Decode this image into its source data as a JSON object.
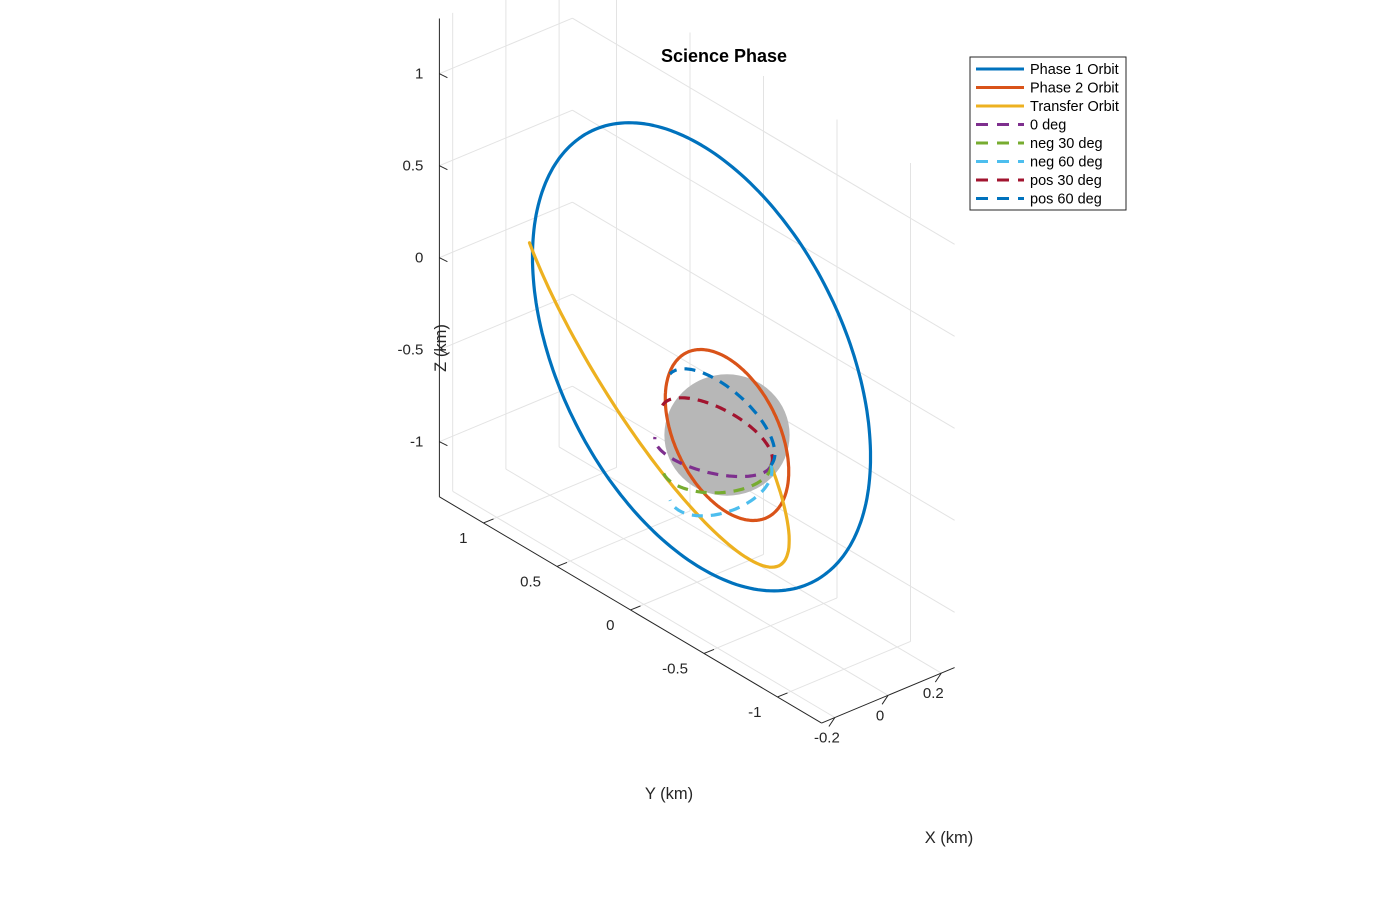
{
  "chart_data": {
    "type": "line",
    "projection": "3d",
    "title": "Science Phase",
    "xlabel": "X (km)",
    "ylabel": "Y (km)",
    "zlabel": "Z (km)",
    "xlim": [
      -0.25,
      0.25
    ],
    "ylim": [
      -1.3,
      1.3
    ],
    "zlim": [
      -1.3,
      1.3
    ],
    "xticks": [
      -0.2,
      0,
      0.2
    ],
    "xtick_labels": [
      "-0.2",
      "0",
      "0.2"
    ],
    "yticks": [
      1,
      0.5,
      0,
      -0.5,
      -1
    ],
    "ytick_labels": [
      "1",
      "0.5",
      "0",
      "-0.5",
      "-1"
    ],
    "zticks": [
      1,
      0.5,
      0,
      -0.5,
      -1
    ],
    "ztick_labels": [
      "1",
      "0.5",
      "0",
      "-0.5",
      "-1"
    ],
    "grid": true,
    "legend_position": "top-right",
    "body": {
      "shape": "sphere",
      "radius_km": 0.3,
      "color": "#b7b7b7"
    },
    "series": [
      {
        "name": "Phase 1 Orbit",
        "color": "#0072BD",
        "style": "solid",
        "shape": "circle",
        "radius_km": 1.15,
        "inclination_deg": 90,
        "arc": "full"
      },
      {
        "name": "Phase 2 Orbit",
        "color": "#D95319",
        "style": "solid",
        "shape": "circle",
        "radius_km": 0.42,
        "inclination_deg": 90,
        "arc": "full"
      },
      {
        "name": "Transfer Orbit",
        "color": "#EDB120",
        "style": "solid",
        "shape": "ellipse",
        "periapsis_km": 0.42,
        "apoapsis_km": 1.15,
        "arc": "half"
      },
      {
        "name": "0 deg",
        "color": "#7E2F8E",
        "style": "dashed",
        "shape": "ellipse",
        "periapsis_km": 0.3,
        "apoapsis_km": 0.42,
        "inclination_deg": 0,
        "arc": "half"
      },
      {
        "name": "neg 30 deg",
        "color": "#77AC30",
        "style": "dashed",
        "shape": "ellipse",
        "periapsis_km": 0.3,
        "apoapsis_km": 0.42,
        "inclination_deg": -30,
        "arc": "half"
      },
      {
        "name": "neg 60 deg",
        "color": "#4DBEEE",
        "style": "dashed",
        "shape": "ellipse",
        "periapsis_km": 0.3,
        "apoapsis_km": 0.42,
        "inclination_deg": -60,
        "arc": "half"
      },
      {
        "name": "pos 30 deg",
        "color": "#A2142F",
        "style": "dashed",
        "shape": "ellipse",
        "periapsis_km": 0.3,
        "apoapsis_km": 0.42,
        "inclination_deg": 30,
        "arc": "half"
      },
      {
        "name": "pos 60 deg",
        "color": "#0072BD",
        "style": "dashed",
        "shape": "ellipse",
        "periapsis_km": 0.3,
        "apoapsis_km": 0.42,
        "inclination_deg": 60,
        "arc": "half"
      }
    ]
  }
}
